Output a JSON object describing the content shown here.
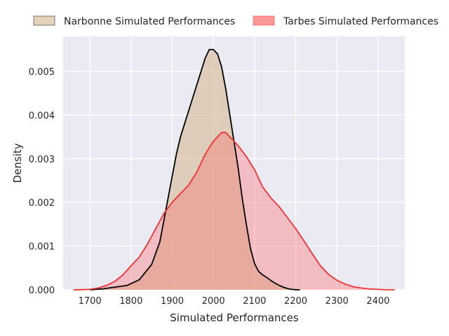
{
  "chart_data": {
    "type": "area",
    "title": "",
    "xlabel": "Simulated Performances",
    "ylabel": "Density",
    "xlim": [
      1635,
      2465
    ],
    "ylim": [
      0,
      0.0058
    ],
    "xticks": [
      "1700",
      "1800",
      "1900",
      "2000",
      "2100",
      "2200",
      "2300",
      "2400"
    ],
    "yticks": [
      "0.000",
      "0.001",
      "0.002",
      "0.003",
      "0.004",
      "0.005"
    ],
    "grid": true,
    "legend_position": "top (above plot)",
    "series": [
      {
        "name": "Narbonne Simulated Performances",
        "fill_color": "#d2b48c",
        "line_color": "#000000",
        "x": [
          1700,
          1730,
          1760,
          1790,
          1820,
          1850,
          1870,
          1880,
          1890,
          1900,
          1910,
          1920,
          1930,
          1940,
          1950,
          1960,
          1970,
          1980,
          1990,
          2000,
          2010,
          2020,
          2030,
          2040,
          2050,
          2060,
          2070,
          2080,
          2090,
          2100,
          2110,
          2120,
          2130,
          2140,
          2150,
          2160,
          2170,
          2180,
          2190,
          2200,
          2210
        ],
        "y": [
          0.0,
          2e-05,
          6e-05,
          0.0001,
          0.00023,
          0.00058,
          0.0011,
          0.0016,
          0.0021,
          0.0026,
          0.0031,
          0.0035,
          0.0038,
          0.0041,
          0.0044,
          0.0047,
          0.005,
          0.0053,
          0.0055,
          0.0055,
          0.0054,
          0.0051,
          0.0046,
          0.004,
          0.0034,
          0.0028,
          0.0021,
          0.0015,
          0.00095,
          0.0006,
          0.00042,
          0.00034,
          0.00028,
          0.00021,
          0.00015,
          0.0001,
          6e-05,
          3e-05,
          1e-05,
          3e-06,
          0.0
        ]
      },
      {
        "name": "Tarbes Simulated Performances",
        "fill_color": "#ff6b6b",
        "line_color": "#f03232",
        "x": [
          1660,
          1680,
          1700,
          1720,
          1740,
          1760,
          1780,
          1800,
          1820,
          1840,
          1860,
          1880,
          1900,
          1920,
          1940,
          1960,
          1980,
          2000,
          2020,
          2030,
          2040,
          2060,
          2080,
          2100,
          2120,
          2140,
          2160,
          2180,
          2200,
          2220,
          2240,
          2260,
          2280,
          2300,
          2320,
          2340,
          2360,
          2380,
          2400,
          2420,
          2440
        ],
        "y": [
          0.0,
          3e-06,
          1e-05,
          4e-05,
          0.0001,
          0.00019,
          0.00034,
          0.00055,
          0.00075,
          0.00105,
          0.0014,
          0.00175,
          0.002,
          0.0022,
          0.0024,
          0.0027,
          0.0031,
          0.0034,
          0.0036,
          0.0036,
          0.0035,
          0.0033,
          0.00305,
          0.00275,
          0.00235,
          0.0021,
          0.0019,
          0.00165,
          0.0014,
          0.00112,
          0.00083,
          0.00055,
          0.00035,
          0.00022,
          0.00013,
          7e-05,
          4e-05,
          2e-05,
          1e-05,
          2e-06,
          0.0
        ]
      }
    ]
  }
}
